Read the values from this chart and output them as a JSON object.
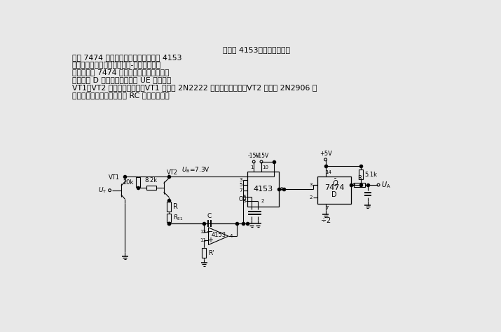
{
  "bg_color": "#e8e8e8",
  "line_color": "#000000",
  "text_color": "#000000",
  "top_lines": [
    "    由两片 4153（功能不同）和",
    "一片 7474 组成的调制器电路。第一片 4153",
    "用于放大器，第二片用于电压-频率变换器，",
    "其输出控制 7474 带预置和清除功能的双正",
    "沿触发的 D 触发器。输入信号 UE 首先经过",
    "VT1、VT2 两级晶体管放大，VT1 可采用 2N2222 或类似型号器件，VT2 可采用 2N2906 或",
    "类似型号器件。输出端接有 RC 低频滤波器。"
  ]
}
